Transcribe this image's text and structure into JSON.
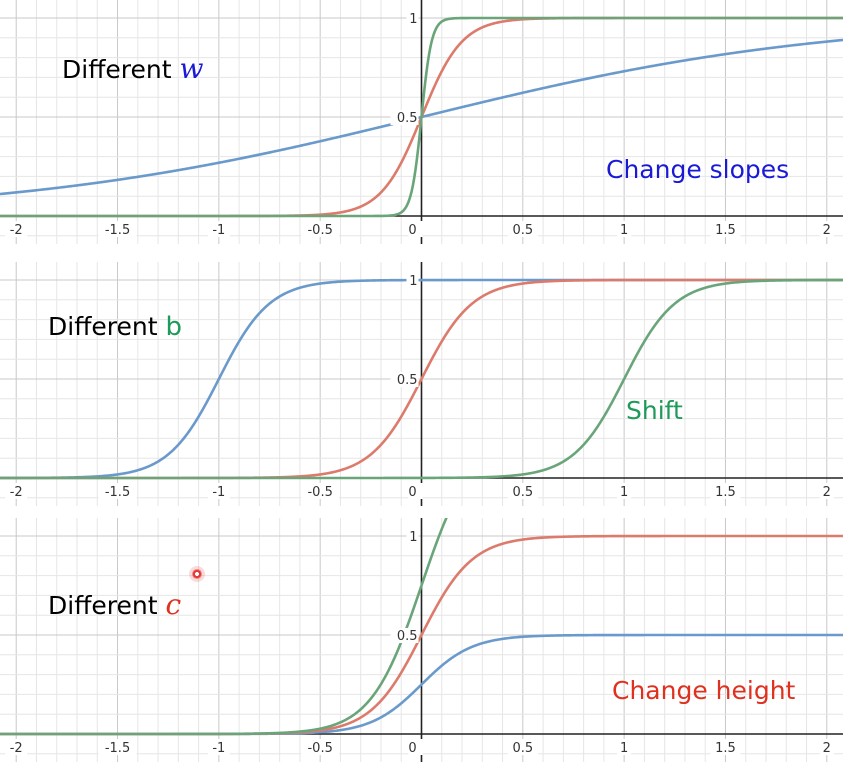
{
  "colors": {
    "blue": "#6a9acb",
    "red": "#dc7b6c",
    "green": "#6aa57a",
    "grid_major": "#c8c8c8",
    "grid_minor": "#e6e6e6",
    "axis": "#222222"
  },
  "chart_data": [
    {
      "type": "line",
      "xlim": [
        -2.08,
        2.08
      ],
      "ylim": [
        -0.01,
        1.01
      ],
      "x_ticks": [
        "-2",
        "-1.5",
        "-1",
        "-0.5",
        "0",
        "0.5",
        "1",
        "1.5",
        "2"
      ],
      "y_ticks": [
        "0.5",
        "1"
      ],
      "grid": true,
      "label": {
        "prefix": "Different",
        "symbol": "w"
      },
      "annotation": "Change slopes",
      "series": [
        {
          "color_key": "blue",
          "w": 1,
          "b": 0,
          "c": 1
        },
        {
          "color_key": "red",
          "w": 10,
          "b": 0,
          "c": 1
        },
        {
          "color_key": "green",
          "w": 40,
          "b": 0,
          "c": 1
        }
      ]
    },
    {
      "type": "line",
      "xlim": [
        -2.08,
        2.08
      ],
      "ylim": [
        -0.01,
        1.01
      ],
      "x_ticks": [
        "-2",
        "-1.5",
        "-1",
        "-0.5",
        "0",
        "0.5",
        "1",
        "1.5",
        "2"
      ],
      "y_ticks": [
        "0.5",
        "1"
      ],
      "grid": true,
      "label": {
        "prefix": "Different",
        "symbol": "b"
      },
      "annotation": "Shift",
      "series": [
        {
          "color_key": "blue",
          "w": 8,
          "b": 8,
          "c": 1
        },
        {
          "color_key": "red",
          "w": 8,
          "b": 0,
          "c": 1
        },
        {
          "color_key": "green",
          "w": 8,
          "b": -8,
          "c": 1
        }
      ]
    },
    {
      "type": "line",
      "xlim": [
        -2.08,
        2.08
      ],
      "ylim": [
        -0.01,
        1.01
      ],
      "x_ticks": [
        "-2",
        "-1.5",
        "-1",
        "-0.5",
        "0",
        "0.5",
        "1",
        "1.5",
        "2"
      ],
      "y_ticks": [
        "0.5",
        "1"
      ],
      "grid": true,
      "label": {
        "prefix": "Different",
        "symbol": "c"
      },
      "annotation": "Change height",
      "series": [
        {
          "color_key": "blue",
          "w": 8,
          "b": 0,
          "c": 0.5
        },
        {
          "color_key": "red",
          "w": 8,
          "b": 0,
          "c": 1
        },
        {
          "color_key": "green",
          "w": 8,
          "b": 0,
          "c": 1.5
        }
      ]
    }
  ]
}
